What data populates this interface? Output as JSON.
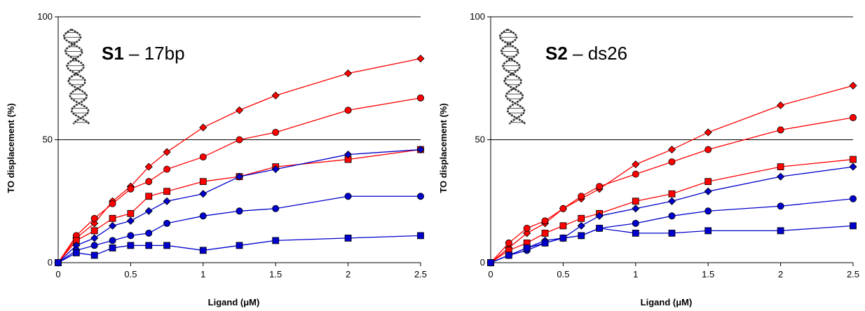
{
  "chart_data": [
    {
      "type": "line",
      "title_bold": "S1",
      "title_rest": " – 17bp",
      "xlabel": "Ligand (μM)",
      "ylabel": "TO displacement (%)",
      "xlim": [
        0,
        2.5
      ],
      "ylim": [
        0,
        100
      ],
      "xticks": [
        "0",
        "0.5",
        "1",
        "1.5",
        "2",
        "2.5"
      ],
      "yticks": [
        "0",
        "50",
        "100"
      ],
      "gridlines_y": [
        50,
        100
      ],
      "legend": "none",
      "series": [
        {
          "color": "#FF0000",
          "marker": "diamond",
          "x": [
            0,
            0.125,
            0.25,
            0.375,
            0.5,
            0.625,
            0.75,
            1,
            1.25,
            1.5,
            2,
            2.5
          ],
          "y": [
            0,
            10,
            16,
            25,
            31,
            39,
            45,
            55,
            62,
            68,
            77,
            83
          ]
        },
        {
          "color": "#FF0000",
          "marker": "circle",
          "x": [
            0,
            0.125,
            0.25,
            0.375,
            0.5,
            0.625,
            0.75,
            1,
            1.25,
            1.5,
            2,
            2.5
          ],
          "y": [
            0,
            11,
            18,
            24,
            30,
            33,
            38,
            43,
            50,
            53,
            62,
            67
          ]
        },
        {
          "color": "#FF0000",
          "marker": "square",
          "x": [
            0,
            0.125,
            0.25,
            0.375,
            0.5,
            0.625,
            0.75,
            1,
            1.25,
            1.5,
            2,
            2.5
          ],
          "y": [
            0,
            9,
            13,
            18,
            20,
            27,
            29,
            33,
            35,
            39,
            42,
            46
          ]
        },
        {
          "color": "#0000CC",
          "marker": "diamond",
          "x": [
            0,
            0.125,
            0.25,
            0.375,
            0.5,
            0.625,
            0.75,
            1,
            1.25,
            1.5,
            2,
            2.5
          ],
          "y": [
            0,
            7,
            10,
            15,
            17,
            21,
            25,
            28,
            35,
            38,
            44,
            46
          ]
        },
        {
          "color": "#0000CC",
          "marker": "circle",
          "x": [
            0,
            0.125,
            0.25,
            0.375,
            0.5,
            0.625,
            0.75,
            1,
            1.25,
            1.5,
            2,
            2.5
          ],
          "y": [
            0,
            5,
            7,
            9,
            11,
            12,
            16,
            19,
            21,
            22,
            27,
            27
          ]
        },
        {
          "color": "#0000CC",
          "marker": "square",
          "x": [
            0,
            0.125,
            0.25,
            0.375,
            0.5,
            0.625,
            0.75,
            1,
            1.25,
            1.5,
            2,
            2.5
          ],
          "y": [
            0,
            4,
            3,
            6,
            7,
            7,
            7,
            5,
            7,
            9,
            10,
            11
          ]
        }
      ]
    },
    {
      "type": "line",
      "title_bold": "S2",
      "title_rest": " – ds26",
      "xlabel": "Ligand (μM)",
      "ylabel": "TO displacement (%)",
      "xlim": [
        0,
        2.5
      ],
      "ylim": [
        0,
        100
      ],
      "xticks": [
        "0",
        "0.5",
        "1",
        "1.5",
        "2",
        "2.5"
      ],
      "yticks": [
        "0",
        "50",
        "100"
      ],
      "gridlines_y": [
        50,
        100
      ],
      "legend": "none",
      "series": [
        {
          "color": "#FF0000",
          "marker": "diamond",
          "x": [
            0,
            0.125,
            0.25,
            0.375,
            0.5,
            0.625,
            0.75,
            1,
            1.25,
            1.5,
            2,
            2.5
          ],
          "y": [
            0,
            6,
            12,
            16,
            22,
            26,
            30,
            40,
            46,
            53,
            64,
            72
          ]
        },
        {
          "color": "#FF0000",
          "marker": "circle",
          "x": [
            0,
            0.125,
            0.25,
            0.375,
            0.5,
            0.625,
            0.75,
            1,
            1.25,
            1.5,
            2,
            2.5
          ],
          "y": [
            0,
            8,
            14,
            17,
            22,
            27,
            31,
            36,
            41,
            46,
            54,
            59
          ]
        },
        {
          "color": "#FF0000",
          "marker": "square",
          "x": [
            0,
            0.125,
            0.25,
            0.375,
            0.5,
            0.625,
            0.75,
            1,
            1.25,
            1.5,
            2,
            2.5
          ],
          "y": [
            0,
            5,
            8,
            12,
            15,
            18,
            20,
            25,
            28,
            33,
            39,
            42
          ]
        },
        {
          "color": "#0000CC",
          "marker": "diamond",
          "x": [
            0,
            0.125,
            0.25,
            0.375,
            0.5,
            0.625,
            0.75,
            1,
            1.25,
            1.5,
            2,
            2.5
          ],
          "y": [
            0,
            3,
            6,
            9,
            10,
            15,
            19,
            22,
            25,
            29,
            35,
            39
          ]
        },
        {
          "color": "#0000CC",
          "marker": "circle",
          "x": [
            0,
            0.125,
            0.25,
            0.375,
            0.5,
            0.625,
            0.75,
            1,
            1.25,
            1.5,
            2,
            2.5
          ],
          "y": [
            0,
            3,
            5,
            8,
            10,
            11,
            14,
            16,
            19,
            21,
            23,
            26
          ]
        },
        {
          "color": "#0000CC",
          "marker": "square",
          "x": [
            0,
            0.125,
            0.25,
            0.375,
            0.5,
            0.625,
            0.75,
            1,
            1.25,
            1.5,
            2,
            2.5
          ],
          "y": [
            0,
            3,
            6,
            8,
            10,
            11,
            14,
            12,
            12,
            13,
            13,
            15
          ]
        }
      ]
    }
  ]
}
